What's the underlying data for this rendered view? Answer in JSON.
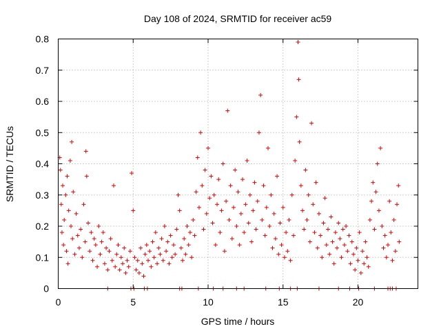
{
  "chart_data": {
    "type": "scatter",
    "title": "Day 108 of 2024, SRMTID for receiver ac59",
    "xlabel": "GPS time / hours",
    "ylabel": "SRMTID / TECUs",
    "xlim": [
      0,
      24
    ],
    "ylim": [
      0,
      0.8
    ],
    "xticks": [
      0,
      5,
      10,
      15,
      20
    ],
    "xtick_labels": [
      "0",
      "5",
      "10",
      "15",
      "20"
    ],
    "yticks": [
      0,
      0.1,
      0.2,
      0.3,
      0.4,
      0.5,
      0.6,
      0.7,
      0.8
    ],
    "ytick_labels": [
      "0",
      "0.1",
      "0.2",
      "0.3",
      "0.4",
      "0.5",
      "0.6",
      "0.7",
      "0.8"
    ],
    "grid": true,
    "marker": "plus",
    "color": "#dd0000",
    "series": [
      {
        "name": "SRMTID",
        "points": [
          [
            0.1,
            0.42
          ],
          [
            0.15,
            0.38
          ],
          [
            0.2,
            0.27
          ],
          [
            0.25,
            0.18
          ],
          [
            0.3,
            0.33
          ],
          [
            0.35,
            0.14
          ],
          [
            0.4,
            0.22
          ],
          [
            0.5,
            0.3
          ],
          [
            0.55,
            0.12
          ],
          [
            0.6,
            0.36
          ],
          [
            0.65,
            0.08
          ],
          [
            0.7,
            0.25
          ],
          [
            0.8,
            0.41
          ],
          [
            0.85,
            0.2
          ],
          [
            0.9,
            0.47
          ],
          [
            0.95,
            0.16
          ],
          [
            1.0,
            0.31
          ],
          [
            1.1,
            0.11
          ],
          [
            1.2,
            0.24
          ],
          [
            1.3,
            0.17
          ],
          [
            1.4,
            0.13
          ],
          [
            1.5,
            0.19
          ],
          [
            1.6,
            0.1
          ],
          [
            1.7,
            0.27
          ],
          [
            1.8,
            0.15
          ],
          [
            1.85,
            0.44
          ],
          [
            1.9,
            0.36
          ],
          [
            2.0,
            0.21
          ],
          [
            2.1,
            0.12
          ],
          [
            2.2,
            0.18
          ],
          [
            2.3,
            0.09
          ],
          [
            2.4,
            0.16
          ],
          [
            2.5,
            0.14
          ],
          [
            2.6,
            0.07
          ],
          [
            2.7,
            0.2
          ],
          [
            2.8,
            0.11
          ],
          [
            2.9,
            0.15
          ],
          [
            3.0,
            0.18
          ],
          [
            3.1,
            0.08
          ],
          [
            3.2,
            0.13
          ],
          [
            3.3,
            0.06
          ],
          [
            3.4,
            0.12
          ],
          [
            3.5,
            0.16
          ],
          [
            3.6,
            0.09
          ],
          [
            3.7,
            0.33
          ],
          [
            3.8,
            0.07
          ],
          [
            3.9,
            0.11
          ],
          [
            4.0,
            0.14
          ],
          [
            4.1,
            0.06
          ],
          [
            4.2,
            0.1
          ],
          [
            4.3,
            0.08
          ],
          [
            4.4,
            0.13
          ],
          [
            4.5,
            0.05
          ],
          [
            4.6,
            0.09
          ],
          [
            4.7,
            0.07
          ],
          [
            4.8,
            0.12
          ],
          [
            4.9,
            0.37
          ],
          [
            5.0,
            0.25
          ],
          [
            5.1,
            0.1
          ],
          [
            5.2,
            0.06
          ],
          [
            5.3,
            0.09
          ],
          [
            5.4,
            0.05
          ],
          [
            5.5,
            0.13
          ],
          [
            5.6,
            0.08
          ],
          [
            5.7,
            0.04
          ],
          [
            5.8,
            0.11
          ],
          [
            5.9,
            0.14
          ],
          [
            6.0,
            0.09
          ],
          [
            6.1,
            0.12
          ],
          [
            6.2,
            0.07
          ],
          [
            6.3,
            0.15
          ],
          [
            6.4,
            0.1
          ],
          [
            6.5,
            0.18
          ],
          [
            6.6,
            0.08
          ],
          [
            6.7,
            0.13
          ],
          [
            6.8,
            0.11
          ],
          [
            6.9,
            0.16
          ],
          [
            7.0,
            0.09
          ],
          [
            7.1,
            0.2
          ],
          [
            7.2,
            0.12
          ],
          [
            7.3,
            0.15
          ],
          [
            7.4,
            0.08
          ],
          [
            7.5,
            0.17
          ],
          [
            7.6,
            0.1
          ],
          [
            7.7,
            0.14
          ],
          [
            7.8,
            0.11
          ],
          [
            7.9,
            0.19
          ],
          [
            8.0,
            0.3
          ],
          [
            8.1,
            0.25
          ],
          [
            8.2,
            0.13
          ],
          [
            8.3,
            0.09
          ],
          [
            8.4,
            0.16
          ],
          [
            8.5,
            0.11
          ],
          [
            8.6,
            0.2
          ],
          [
            8.7,
            0.14
          ],
          [
            8.8,
            0.18
          ],
          [
            8.9,
            0.1
          ],
          [
            9.0,
            0.22
          ],
          [
            9.1,
            0.17
          ],
          [
            9.2,
            0.31
          ],
          [
            9.3,
            0.42
          ],
          [
            9.4,
            0.26
          ],
          [
            9.5,
            0.5
          ],
          [
            9.6,
            0.33
          ],
          [
            9.7,
            0.19
          ],
          [
            9.8,
            0.38
          ],
          [
            9.9,
            0.24
          ],
          [
            10.0,
            0.45
          ],
          [
            10.1,
            0.29
          ],
          [
            10.2,
            0.36
          ],
          [
            10.3,
            0.21
          ],
          [
            10.4,
            0.3
          ],
          [
            10.5,
            0.14
          ],
          [
            10.6,
            0.27
          ],
          [
            10.7,
            0.35
          ],
          [
            10.8,
            0.18
          ],
          [
            10.9,
            0.25
          ],
          [
            11.0,
            0.4
          ],
          [
            11.1,
            0.12
          ],
          [
            11.2,
            0.28
          ],
          [
            11.3,
            0.57
          ],
          [
            11.4,
            0.22
          ],
          [
            11.5,
            0.33
          ],
          [
            11.6,
            0.16
          ],
          [
            11.7,
            0.26
          ],
          [
            11.8,
            0.38
          ],
          [
            11.9,
            0.2
          ],
          [
            12.0,
            0.31
          ],
          [
            12.1,
            0.14
          ],
          [
            12.2,
            0.24
          ],
          [
            12.3,
            0.35
          ],
          [
            12.4,
            0.18
          ],
          [
            12.5,
            0.27
          ],
          [
            12.6,
            0.41
          ],
          [
            12.7,
            0.21
          ],
          [
            12.8,
            0.3
          ],
          [
            12.9,
            0.15
          ],
          [
            13.0,
            0.25
          ],
          [
            13.1,
            0.34
          ],
          [
            13.2,
            0.19
          ],
          [
            13.3,
            0.28
          ],
          [
            13.4,
            0.5
          ],
          [
            13.5,
            0.62
          ],
          [
            13.6,
            0.22
          ],
          [
            13.7,
            0.33
          ],
          [
            13.8,
            0.17
          ],
          [
            13.9,
            0.26
          ],
          [
            14.0,
            0.45
          ],
          [
            14.1,
            0.2
          ],
          [
            14.2,
            0.3
          ],
          [
            14.3,
            0.13
          ],
          [
            14.4,
            0.24
          ],
          [
            14.5,
            0.16
          ],
          [
            14.6,
            0.36
          ],
          [
            14.7,
            0.11
          ],
          [
            14.8,
            0.21
          ],
          [
            14.9,
            0.14
          ],
          [
            15.0,
            0.26
          ],
          [
            15.1,
            0.1
          ],
          [
            15.2,
            0.18
          ],
          [
            15.3,
            0.12
          ],
          [
            15.4,
            0.22
          ],
          [
            15.5,
            0.09
          ],
          [
            15.6,
            0.3
          ],
          [
            15.7,
            0.17
          ],
          [
            15.8,
            0.41
          ],
          [
            15.9,
            0.55
          ],
          [
            16.0,
            0.79
          ],
          [
            16.05,
            0.67
          ],
          [
            16.1,
            0.47
          ],
          [
            16.2,
            0.33
          ],
          [
            16.3,
            0.25
          ],
          [
            16.4,
            0.19
          ],
          [
            16.5,
            0.38
          ],
          [
            16.6,
            0.22
          ],
          [
            16.7,
            0.3
          ],
          [
            16.8,
            0.15
          ],
          [
            16.9,
            0.53
          ],
          [
            17.0,
            0.27
          ],
          [
            17.1,
            0.18
          ],
          [
            17.2,
            0.34
          ],
          [
            17.3,
            0.13
          ],
          [
            17.4,
            0.24
          ],
          [
            17.5,
            0.17
          ],
          [
            17.6,
            0.1
          ],
          [
            17.7,
            0.21
          ],
          [
            17.8,
            0.29
          ],
          [
            17.9,
            0.14
          ],
          [
            18.0,
            0.19
          ],
          [
            18.1,
            0.11
          ],
          [
            18.2,
            0.23
          ],
          [
            18.3,
            0.15
          ],
          [
            18.4,
            0.08
          ],
          [
            18.5,
            0.18
          ],
          [
            18.6,
            0.13
          ],
          [
            18.7,
            0.21
          ],
          [
            18.8,
            0.16
          ],
          [
            18.9,
            0.1
          ],
          [
            19.0,
            0.19
          ],
          [
            19.1,
            0.14
          ],
          [
            19.2,
            0.2
          ],
          [
            19.3,
            0.12
          ],
          [
            19.4,
            0.17
          ],
          [
            19.5,
            0.08
          ],
          [
            19.6,
            0.15
          ],
          [
            19.7,
            0.11
          ],
          [
            19.8,
            0.06
          ],
          [
            19.9,
            0.13
          ],
          [
            20.0,
            0.09
          ],
          [
            20.1,
            0.18
          ],
          [
            20.2,
            0.05
          ],
          [
            20.3,
            0.12
          ],
          [
            20.4,
            0.08
          ],
          [
            20.5,
            0.15
          ],
          [
            20.6,
            0.1
          ],
          [
            20.7,
            0.07
          ],
          [
            20.8,
            0.22
          ],
          [
            20.9,
            0.28
          ],
          [
            21.0,
            0.34
          ],
          [
            21.1,
            0.19
          ],
          [
            21.2,
            0.31
          ],
          [
            21.3,
            0.4
          ],
          [
            21.4,
            0.25
          ],
          [
            21.5,
            0.45
          ],
          [
            21.6,
            0.2
          ],
          [
            21.7,
            0.13
          ],
          [
            21.8,
            0.17
          ],
          [
            21.9,
            0.1
          ],
          [
            22.0,
            0.14
          ],
          [
            22.1,
            0.28
          ],
          [
            22.2,
            0.18
          ],
          [
            22.3,
            0.09
          ],
          [
            22.4,
            0.22
          ],
          [
            22.5,
            0.12
          ],
          [
            22.6,
            0.27
          ],
          [
            22.7,
            0.33
          ],
          [
            22.75,
            0.15
          ]
        ]
      }
    ],
    "zero_markers_x": [
      3.3,
      4.85,
      5.05,
      5.75,
      5.95,
      8.1,
      8.25,
      9.35,
      10.35,
      11.0,
      11.9,
      12.4,
      13.85,
      14.75,
      15.5,
      15.95,
      17.4,
      18.7,
      19.45,
      20.05,
      21.1,
      22.0,
      22.15,
      22.3,
      22.55
    ]
  }
}
